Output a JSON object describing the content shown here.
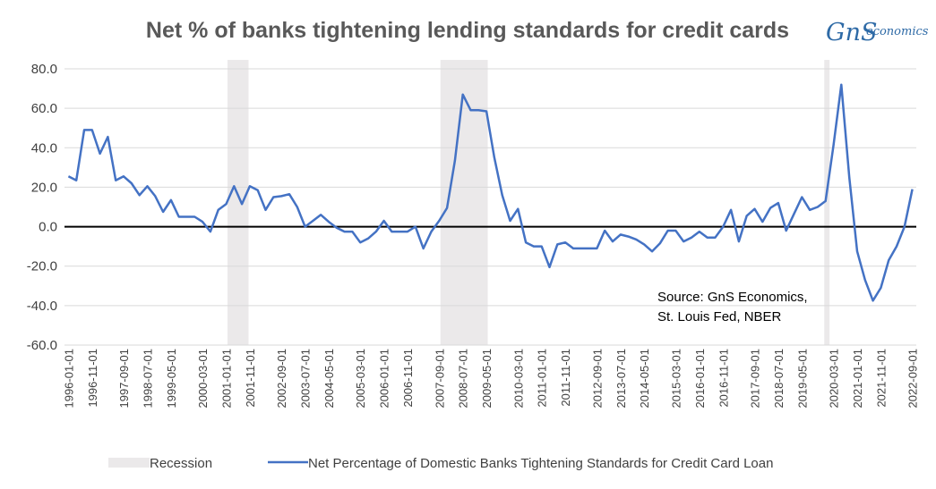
{
  "chart_data": {
    "type": "line",
    "title": "Net % of banks tightening lending standards for credit cards",
    "xlabel": "",
    "ylabel": "",
    "ylim": [
      -60,
      80
    ],
    "yticks": [
      "80.0",
      "60.0",
      "40.0",
      "20.0",
      "0.0",
      "-20.0",
      "-40.0",
      "-60.0"
    ],
    "x_start": "1996-01",
    "x_step_months": 3,
    "xtick_labels": [
      "1996-01-01",
      "1996-11-01",
      "1997-09-01",
      "1998-07-01",
      "1999-05-01",
      "2000-03-01",
      "2001-01-01",
      "2001-11-01",
      "2002-09-01",
      "2003-07-01",
      "2004-05-01",
      "2005-03-01",
      "2006-01-01",
      "2006-11-01",
      "2007-09-01",
      "2008-07-01",
      "2009-05-01",
      "2010-03-01",
      "2011-01-01",
      "2011-11-01",
      "2012-09-01",
      "2013-07-01",
      "2014-05-01",
      "2015-03-01",
      "2016-01-01",
      "2016-11-01",
      "2017-09-01",
      "2018-07-01",
      "2019-05-01",
      "2020-03-01",
      "2021-01-01",
      "2021-11-01",
      "2022-09-01"
    ],
    "grid": true,
    "zero_line": true,
    "legend_position": "bottom",
    "series": [
      {
        "name": "Net Percentage of Domestic Banks Tightening Standards for Credit Card Loan",
        "color": "#4472c4",
        "values": [
          25.5,
          23.5,
          49,
          49,
          37,
          45.5,
          23.5,
          25.5,
          22,
          16,
          20.5,
          15.5,
          7.5,
          13.5,
          5,
          5,
          5,
          2.5,
          -2.5,
          8.5,
          11.5,
          20.5,
          11.5,
          20.5,
          18.5,
          8.5,
          15,
          15.5,
          16.5,
          10,
          0,
          3,
          6,
          2.5,
          -0.5,
          -2.5,
          -2.5,
          -8,
          -6,
          -2.5,
          3,
          -2.5,
          -2.5,
          -2.5,
          0,
          -11,
          -2.5,
          3,
          9.5,
          33.5,
          67,
          59,
          59,
          58.5,
          35,
          16,
          3,
          9,
          -8,
          -10,
          -10,
          -20.5,
          -9,
          -8,
          -11,
          -11,
          -11,
          -11,
          -2,
          -7.5,
          -4,
          -5,
          -6.5,
          -9,
          -12.5,
          -8.5,
          -2,
          -2,
          -7.5,
          -5.5,
          -2.5,
          -5.5,
          -5.5,
          0,
          8.5,
          -7.5,
          5.5,
          9,
          2.5,
          9.5,
          12,
          -2,
          6.5,
          15,
          8.5,
          10,
          13,
          41,
          72,
          25,
          -12.5,
          -27,
          -37.5,
          -31,
          -17,
          -10,
          0,
          19
        ]
      }
    ],
    "recessions": [
      {
        "name": "Recession",
        "start": "2001-03",
        "end": "2001-11"
      },
      {
        "name": "Recession",
        "start": "2007-12",
        "end": "2009-06"
      },
      {
        "name": "Recession",
        "start": "2020-02",
        "end": "2020-04"
      }
    ],
    "annotations": [
      "Source: GnS Economics,",
      "St. Louis Fed, NBER"
    ],
    "legend": [
      "Recession",
      "Net Percentage of Domestic Banks Tightening Standards for Credit Card Loan"
    ],
    "colors": {
      "recession": "#ebe9ea",
      "grid": "#d9d9d9",
      "zero": "#000000",
      "line": "#4472c4"
    }
  },
  "logo": {
    "main": "GnS",
    "sub": "economics"
  }
}
